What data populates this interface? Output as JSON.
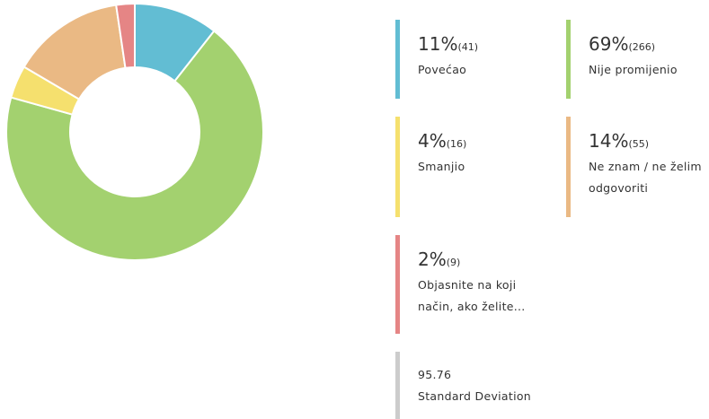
{
  "chart_data": {
    "type": "pie",
    "donut": true,
    "categories": [
      "Povećao",
      "Nije promijenio",
      "Smanjio",
      "Ne znam / ne želim odgovoriti",
      "Objasnite na koji način, ako želite..."
    ],
    "values": [
      11,
      69,
      4,
      14,
      2
    ],
    "value_labels": [
      "11%",
      "69%",
      "4%",
      "14%",
      "2%"
    ],
    "counts": [
      41,
      266,
      16,
      55,
      9
    ],
    "count_labels": [
      "(41)",
      "(266)",
      "(16)",
      "(55)",
      "(9)"
    ],
    "colors": [
      "#62bdd3",
      "#a3d16f",
      "#f5e06e",
      "#eab984",
      "#e58585"
    ],
    "stat": {
      "value": 95.76,
      "label": "Standard Deviation"
    }
  }
}
